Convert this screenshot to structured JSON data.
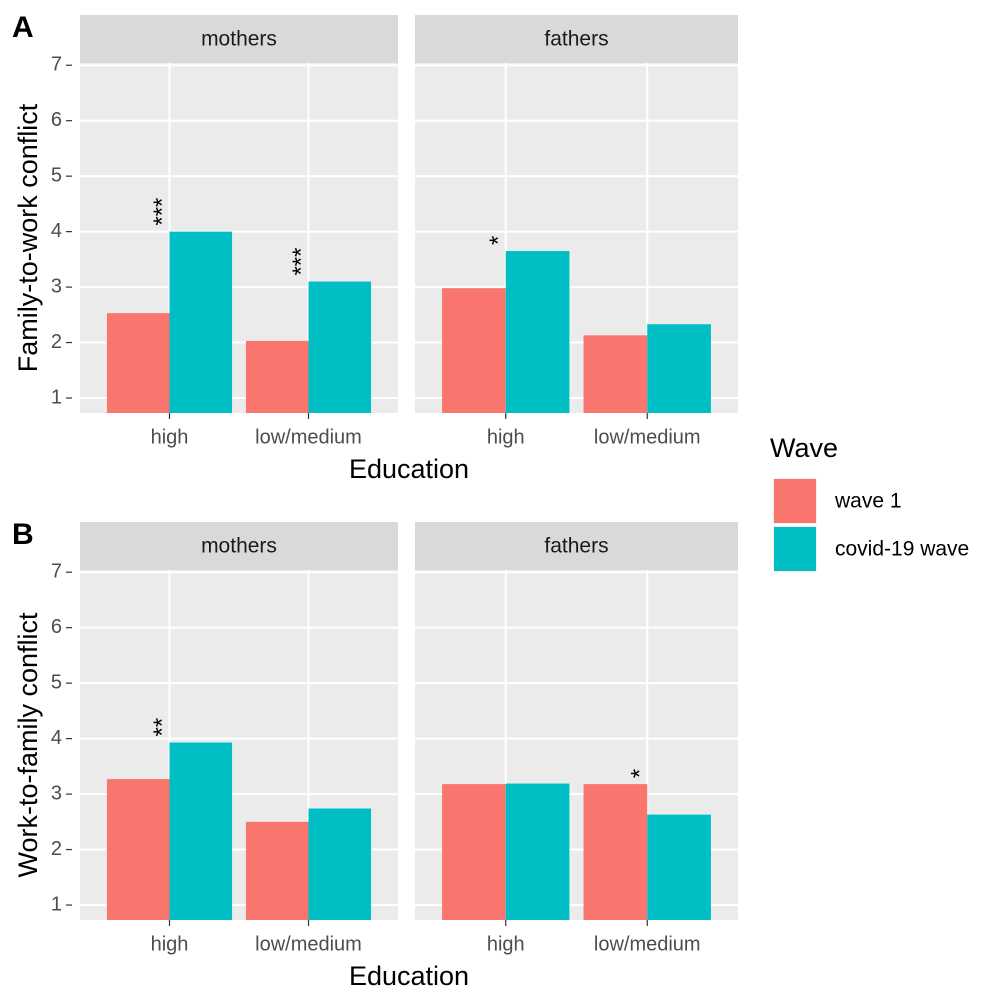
{
  "chart_data": [
    {
      "type": "bar",
      "panel_label": "A",
      "y_label": "Family-to-work conflict",
      "x_label": "Education",
      "ylim": [
        0.73,
        7.04
      ],
      "yticks": [
        1,
        2,
        3,
        4,
        5,
        6,
        7
      ],
      "grid": true,
      "facets": [
        {
          "title": "mothers",
          "categories": [
            "high",
            "low/medium"
          ],
          "annotations": [
            "***",
            "***"
          ],
          "series": [
            {
              "name": "wave 1",
              "color": "#f8766d",
              "values": [
                2.53,
                2.03
              ]
            },
            {
              "name": "covid-19 wave",
              "color": "#00bfc4",
              "values": [
                4.0,
                3.1
              ]
            }
          ]
        },
        {
          "title": "fathers",
          "categories": [
            "high",
            "low/medium"
          ],
          "annotations": [
            "*",
            null
          ],
          "series": [
            {
              "name": "wave 1",
              "color": "#f8766d",
              "values": [
                2.98,
                2.13
              ]
            },
            {
              "name": "covid-19 wave",
              "color": "#00bfc4",
              "values": [
                3.65,
                2.33
              ]
            }
          ]
        }
      ]
    },
    {
      "type": "bar",
      "panel_label": "B",
      "y_label": "Work-to-family conflict",
      "x_label": "Education",
      "ylim": [
        0.73,
        7.04
      ],
      "yticks": [
        1,
        2,
        3,
        4,
        5,
        6,
        7
      ],
      "grid": true,
      "facets": [
        {
          "title": "mothers",
          "categories": [
            "high",
            "low/medium"
          ],
          "annotations": [
            "**",
            null
          ],
          "series": [
            {
              "name": "wave 1",
              "color": "#f8766d",
              "values": [
                3.27,
                2.5
              ]
            },
            {
              "name": "covid-19 wave",
              "color": "#00bfc4",
              "values": [
                3.93,
                2.74
              ]
            }
          ]
        },
        {
          "title": "fathers",
          "categories": [
            "high",
            "low/medium"
          ],
          "annotations": [
            null,
            "*"
          ],
          "series": [
            {
              "name": "wave 1",
              "color": "#f8766d",
              "values": [
                3.18,
                3.18
              ]
            },
            {
              "name": "covid-19 wave",
              "color": "#00bfc4",
              "values": [
                3.19,
                2.63
              ]
            }
          ]
        }
      ]
    }
  ],
  "legend": {
    "title": "Wave"
  }
}
